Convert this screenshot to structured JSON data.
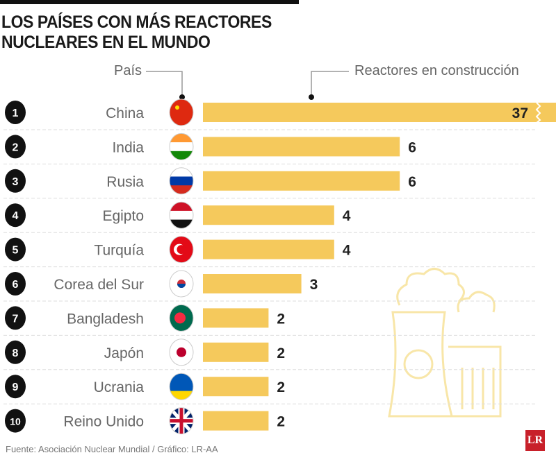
{
  "title_line1": "LOS PAÍSES CON MÁS REACTORES",
  "title_line2": "NUCLEARES EN EL MUNDO",
  "legend_country": "País",
  "legend_bars": "Reactores en construcción",
  "source": "Fuente: Asociación Nuclear Mundial / Gráfico: LR-AA",
  "logo": "LR",
  "colors": {
    "bar": "#f5c95c",
    "rank": "#111111",
    "illustration": "#f8e6a8"
  },
  "chart_data": {
    "type": "bar",
    "orientation": "horizontal",
    "title": "LOS PAÍSES CON MÁS REACTORES NUCLEARES EN EL MUNDO",
    "xlabel": "Reactores en construcción",
    "ylabel": "País",
    "ranks": [
      "1",
      "2",
      "3",
      "4",
      "5",
      "6",
      "7",
      "8",
      "9",
      "10"
    ],
    "categories": [
      "China",
      "India",
      "Rusia",
      "Egipto",
      "Turquía",
      "Corea del Sur",
      "Bangladesh",
      "Japón",
      "Ucrania",
      "Reino Unido"
    ],
    "values": [
      37,
      6,
      6,
      4,
      4,
      3,
      2,
      2,
      2,
      2
    ],
    "truncated": [
      "China"
    ]
  }
}
